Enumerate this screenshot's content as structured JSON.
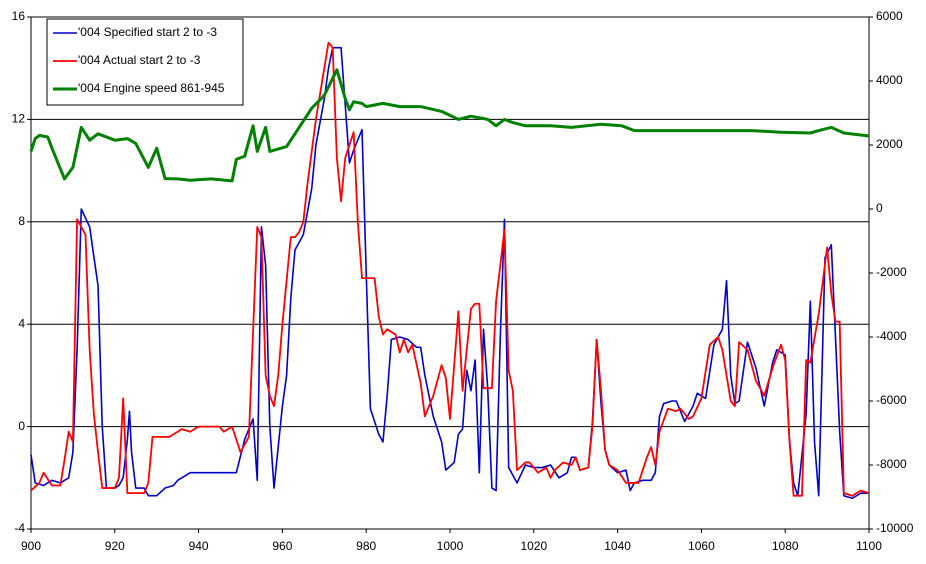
{
  "chart_data": {
    "type": "line",
    "xlim": [
      900,
      1100
    ],
    "xticks": [
      900,
      920,
      940,
      960,
      980,
      1000,
      1020,
      1040,
      1060,
      1080,
      1100
    ],
    "ylim": [
      -4,
      16
    ],
    "yticks": [
      -4,
      0,
      4,
      8,
      12,
      16
    ],
    "y2lim": [
      -10000,
      6000
    ],
    "y2ticks": [
      -10000,
      -8000,
      -6000,
      -4000,
      -2000,
      0,
      2000,
      4000,
      6000
    ],
    "grid": true,
    "legend": "upper-left",
    "series": [
      {
        "name": "'004 Specified start 2 to -3",
        "color": "#0000cc",
        "axis": "y",
        "x": [
          900,
          901,
          903,
          905,
          907,
          909,
          910,
          911,
          912,
          914,
          916,
          917,
          918,
          920,
          921,
          922,
          923,
          923.5,
          924,
          925,
          927,
          928,
          930,
          932,
          934,
          935,
          938,
          945,
          949,
          951,
          953,
          954,
          955,
          956,
          957,
          958,
          960,
          961,
          962,
          963,
          965,
          967,
          968,
          970,
          971,
          972,
          974,
          976,
          977,
          979,
          980,
          981,
          983,
          984,
          985,
          986,
          988,
          990,
          992,
          993,
          994,
          996,
          998,
          999,
          1001,
          1002,
          1003,
          1004,
          1005,
          1006,
          1007,
          1008,
          1009,
          1010,
          1011,
          1012,
          1013,
          1014,
          1016,
          1018,
          1020,
          1022,
          1024,
          1026,
          1028,
          1029,
          1030,
          1031,
          1033,
          1034,
          1035,
          1036,
          1037,
          1038,
          1040,
          1042,
          1043,
          1044,
          1046,
          1048,
          1049,
          1050,
          1051,
          1053,
          1054,
          1056,
          1058,
          1059,
          1061,
          1063,
          1065,
          1066,
          1067,
          1068,
          1069,
          1071,
          1073,
          1075,
          1077,
          1078,
          1080,
          1081,
          1082,
          1083,
          1085,
          1086,
          1087,
          1088,
          1089.5,
          1091,
          1092,
          1093,
          1094,
          1096,
          1098,
          1100
        ],
        "values": [
          -1.1,
          -2.2,
          -2.3,
          -2.1,
          -2.2,
          -2.0,
          -1.0,
          3,
          8.5,
          7.8,
          5.5,
          0,
          -2.4,
          -2.4,
          -2.3,
          -2.0,
          -0.5,
          0.6,
          -1.0,
          -2.4,
          -2.4,
          -2.7,
          -2.7,
          -2.4,
          -2.3,
          -2.1,
          -1.8,
          -1.8,
          -1.8,
          -0.5,
          0.3,
          -2.1,
          7.8,
          6.3,
          0,
          -2.4,
          0.8,
          2,
          5,
          6.9,
          7.5,
          9.3,
          11,
          12.8,
          14,
          14.8,
          14.8,
          10.3,
          10.8,
          11.6,
          6,
          0.7,
          -0.3,
          -0.6,
          1.2,
          3.4,
          3.5,
          3.4,
          3.1,
          3.1,
          2,
          0.4,
          -0.6,
          -1.7,
          -1.4,
          -0.3,
          -0.1,
          2.2,
          1.4,
          2.6,
          -1.8,
          3.8,
          1.5,
          -2.4,
          -2.5,
          3.5,
          8.1,
          -1.6,
          -2.2,
          -1.5,
          -1.6,
          -1.6,
          -1.5,
          -2.0,
          -1.8,
          -1.2,
          -1.2,
          -1.7,
          -1.6,
          0.2,
          3.4,
          1,
          -0.9,
          -1.5,
          -1.8,
          -1.7,
          -2.5,
          -2.2,
          -2.1,
          -2.1,
          -1.8,
          0.4,
          0.9,
          1.0,
          1.0,
          0.2,
          0.8,
          1.3,
          1.1,
          3.2,
          3.8,
          5.7,
          2,
          0.9,
          1.0,
          3.3,
          2.3,
          0.8,
          2.5,
          3.0,
          2.8,
          -0.5,
          -2.2,
          -2.7,
          0.5,
          4.9,
          -0.6,
          -2.7,
          6.6,
          7.1,
          3.5,
          -0.2,
          -2.7,
          -2.8,
          -2.6,
          -2.6
        ]
      },
      {
        "name": "'004 Actual start 2 to -3",
        "color": "#ff0000",
        "axis": "y",
        "x": [
          900,
          902,
          903,
          905,
          907,
          908,
          909,
          910,
          911,
          913,
          914,
          915,
          916,
          917,
          920,
          921,
          922,
          923,
          927,
          928,
          929,
          933,
          935,
          936,
          938,
          940,
          945,
          946,
          948,
          950,
          952,
          954,
          955,
          956,
          957,
          958,
          959,
          960,
          962,
          963,
          964,
          965,
          966,
          968,
          970,
          971,
          972,
          973,
          974,
          975,
          977,
          978,
          979,
          982,
          983,
          984,
          985,
          987,
          988,
          989,
          990,
          991,
          993,
          994,
          996,
          998,
          999,
          1000,
          1002,
          1003,
          1005,
          1006,
          1007,
          1008,
          1010,
          1011,
          1013,
          1014,
          1015,
          1016,
          1018,
          1019,
          1021,
          1023,
          1024,
          1025,
          1027,
          1029,
          1030,
          1031,
          1033,
          1034,
          1035,
          1036,
          1037,
          1038,
          1040,
          1042,
          1043,
          1045,
          1047,
          1048,
          1049,
          1050,
          1052,
          1054,
          1055,
          1057,
          1058,
          1060,
          1062,
          1064,
          1065,
          1067,
          1068,
          1069,
          1071,
          1073,
          1075,
          1077,
          1079,
          1080,
          1081,
          1082,
          1083,
          1084,
          1085,
          1086,
          1088,
          1090,
          1091,
          1092,
          1093,
          1094,
          1096,
          1098,
          1100
        ],
        "values": [
          -2.5,
          -2.2,
          -1.8,
          -2.3,
          -2.3,
          -1.3,
          -0.2,
          -0.6,
          8.1,
          7.5,
          3,
          0.5,
          -1,
          -2.4,
          -2.4,
          -2.0,
          1.1,
          -2.6,
          -2.6,
          -2.2,
          -0.4,
          -0.4,
          -0.2,
          -0.1,
          -0.2,
          0,
          0,
          -0.2,
          0,
          -1.0,
          -0.4,
          7.8,
          7.4,
          2,
          1.2,
          0.8,
          2.0,
          4,
          7.4,
          7.4,
          7.6,
          8.0,
          9.5,
          12,
          14,
          15,
          14.8,
          10.5,
          8.8,
          10.5,
          11.5,
          8.0,
          5.8,
          5.8,
          4.3,
          3.6,
          3.8,
          3.6,
          2.9,
          3.4,
          2.9,
          3.2,
          1.7,
          0.4,
          1.2,
          2.4,
          1.9,
          0.3,
          4.5,
          1.4,
          4.6,
          4.8,
          4.8,
          1.5,
          1.5,
          4.9,
          7.7,
          2.2,
          1.4,
          -1.7,
          -1.4,
          -1.4,
          -1.8,
          -1.6,
          -2.0,
          -1.7,
          -1.4,
          -1.5,
          -1.2,
          -1.7,
          -1.6,
          0,
          3.4,
          1.5,
          -0.9,
          -1.5,
          -1.7,
          -2.2,
          -2.2,
          -2.2,
          -1.2,
          -0.8,
          -1.5,
          -0.2,
          0.7,
          0.6,
          0.7,
          0.3,
          0.4,
          1.1,
          3.2,
          3.5,
          3.0,
          1.0,
          0.8,
          3.3,
          3.0,
          1.8,
          1.2,
          2.3,
          3.2,
          2.6,
          -0.5,
          -2.7,
          -2.7,
          -2.7,
          2.6,
          2.5,
          4.4,
          7.0,
          5.2,
          4.1,
          4.1,
          -2.6,
          -2.7,
          -2.5,
          -2.6
        ]
      },
      {
        "name": "'004 Engine speed 861-945",
        "color": "#008000",
        "axis": "y2",
        "x": [
          900,
          901,
          902,
          904,
          905,
          908,
          910,
          912,
          914,
          916,
          920,
          923,
          925,
          928,
          930,
          932,
          935,
          938,
          943,
          948,
          949,
          951,
          953,
          954,
          956,
          957,
          961,
          964,
          967,
          970,
          973,
          975,
          976,
          977,
          979,
          980,
          984,
          988,
          993,
          998,
          1002,
          1005,
          1009,
          1011,
          1013,
          1015,
          1018,
          1024,
          1029,
          1036,
          1041,
          1044,
          1048,
          1060,
          1072,
          1079,
          1086,
          1088,
          1091,
          1094,
          1100
        ],
        "values": [
          1800,
          2200,
          2300,
          2250,
          1900,
          940,
          1300,
          2550,
          2150,
          2350,
          2150,
          2200,
          2050,
          1300,
          1900,
          950,
          940,
          900,
          940,
          880,
          1550,
          1650,
          2600,
          1800,
          2550,
          1800,
          1950,
          2550,
          3150,
          3550,
          4350,
          3450,
          3100,
          3350,
          3300,
          3200,
          3300,
          3200,
          3200,
          3050,
          2800,
          2900,
          2800,
          2600,
          2800,
          2700,
          2600,
          2600,
          2550,
          2650,
          2600,
          2450,
          2450,
          2450,
          2450,
          2400,
          2375,
          2450,
          2550,
          2375,
          2280
        ]
      }
    ]
  }
}
